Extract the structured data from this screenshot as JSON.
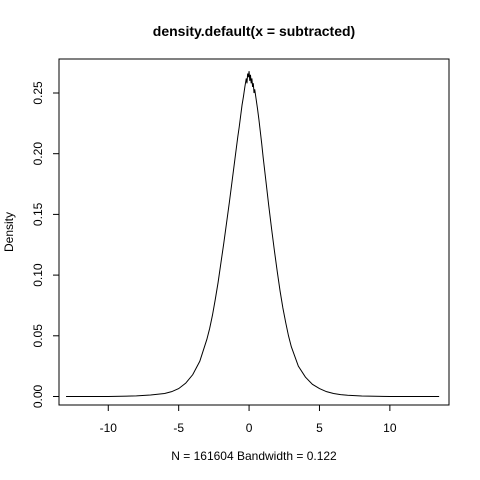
{
  "chart_data": {
    "type": "line",
    "title": "density.default(x = subtracted)",
    "xlabel": "N = 161604   Bandwidth = 0.122",
    "ylabel": "Density",
    "xlim": [
      -13.5,
      14.2
    ],
    "ylim": [
      -0.007,
      0.278
    ],
    "x_ticks": [
      -10,
      -5,
      0,
      5,
      10
    ],
    "x_tick_labels": [
      "-10",
      "-5",
      "0",
      "5",
      "10"
    ],
    "y_ticks": [
      0.0,
      0.05,
      0.1,
      0.15,
      0.2,
      0.25
    ],
    "y_tick_labels": [
      "0.00",
      "0.05",
      "0.10",
      "0.15",
      "0.20",
      "0.25"
    ],
    "grid": false,
    "legend": "none",
    "line_color": "#000000",
    "series": [
      {
        "x": [
          -13.0,
          -10.0,
          -8.0,
          -7.0,
          -6.0,
          -5.5,
          -5.0,
          -4.5,
          -4.0,
          -3.5,
          -3.0,
          -2.8,
          -2.6,
          -2.4,
          -2.2,
          -2.0,
          -1.8,
          -1.6,
          -1.4,
          -1.2,
          -1.0,
          -0.9,
          -0.8,
          -0.7,
          -0.6,
          -0.5,
          -0.4,
          -0.3,
          -0.2,
          -0.15,
          -0.1,
          -0.05,
          0.0,
          0.05,
          0.1,
          0.15,
          0.2,
          0.25,
          0.3,
          0.35,
          0.4,
          0.5,
          0.6,
          0.7,
          0.8,
          0.9,
          1.0,
          1.2,
          1.4,
          1.6,
          1.8,
          2.0,
          2.2,
          2.4,
          2.6,
          2.8,
          3.0,
          3.5,
          4.0,
          4.5,
          5.0,
          5.5,
          6.0,
          6.5,
          7.0,
          8.0,
          10.0,
          13.5
        ],
        "y": [
          0.0,
          0.0,
          0.0005,
          0.0012,
          0.0025,
          0.004,
          0.0065,
          0.011,
          0.018,
          0.029,
          0.047,
          0.056,
          0.067,
          0.08,
          0.094,
          0.11,
          0.126,
          0.143,
          0.16,
          0.178,
          0.196,
          0.205,
          0.214,
          0.222,
          0.231,
          0.24,
          0.247,
          0.255,
          0.262,
          0.258,
          0.266,
          0.263,
          0.268,
          0.26,
          0.265,
          0.258,
          0.262,
          0.255,
          0.258,
          0.25,
          0.253,
          0.245,
          0.237,
          0.228,
          0.218,
          0.208,
          0.197,
          0.177,
          0.157,
          0.138,
          0.12,
          0.103,
          0.087,
          0.073,
          0.061,
          0.05,
          0.041,
          0.025,
          0.016,
          0.01,
          0.0065,
          0.004,
          0.0025,
          0.0015,
          0.001,
          0.0004,
          0.0,
          0.0
        ]
      }
    ]
  }
}
